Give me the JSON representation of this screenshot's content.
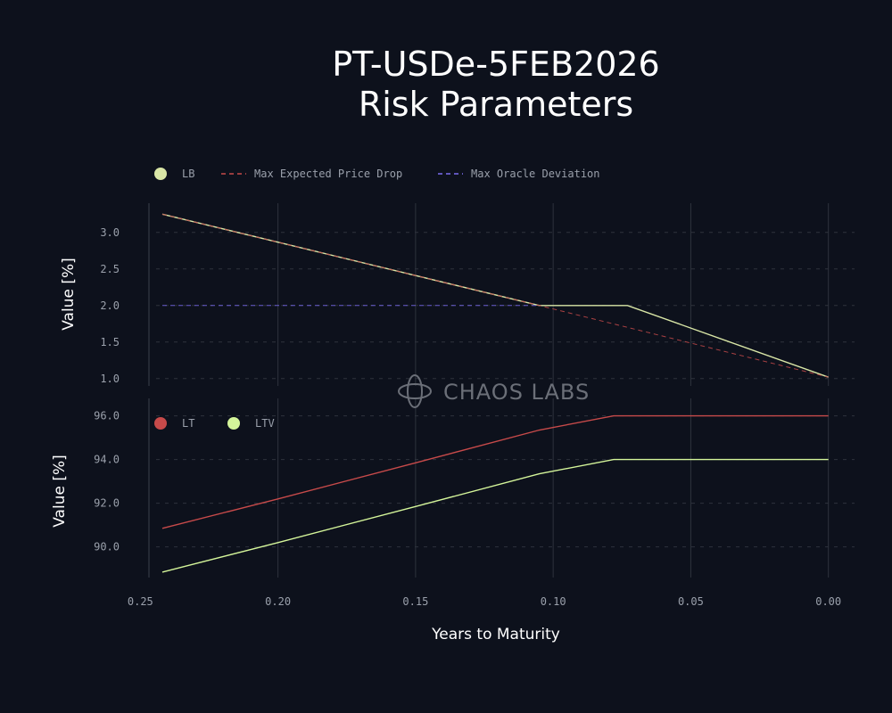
{
  "title_lines": [
    "PT-USDe-5FEB2026",
    "Risk Parameters"
  ],
  "watermark": "CHAOS LABS",
  "chart_data": [
    {
      "type": "line",
      "ylabel": "Value [%]",
      "ylim": [
        0.9,
        3.4
      ],
      "yticks": [
        "1.0",
        "1.5",
        "2.0",
        "2.5",
        "3.0"
      ],
      "grid": true,
      "legend": "top-left",
      "series": [
        {
          "name": "LB",
          "color": "#d9e6a6",
          "style": "solid",
          "marker": "dot",
          "x": [
            0.242,
            0.105,
            0.073,
            0.0
          ],
          "y": [
            3.25,
            2.0,
            2.0,
            1.02
          ]
        },
        {
          "name": "Max Expected Price Drop",
          "color": "#c74a4a",
          "style": "dashed",
          "marker": "dash",
          "x": [
            0.242,
            0.105,
            0.0
          ],
          "y": [
            3.25,
            2.0,
            1.02
          ]
        },
        {
          "name": "Max Oracle Deviation",
          "color": "#7b6cf0",
          "style": "dashed",
          "marker": "dash",
          "x": [
            0.242,
            0.105
          ],
          "y": [
            2.0,
            2.0
          ]
        }
      ]
    },
    {
      "type": "line",
      "ylabel": "Value [%]",
      "ylim": [
        88.6,
        96.8
      ],
      "yticks": [
        "90.0",
        "92.0",
        "94.0",
        "96.0"
      ],
      "grid": true,
      "legend": "top-left",
      "series": [
        {
          "name": "LT",
          "color": "#c74a4a",
          "style": "solid",
          "marker": "dot",
          "x": [
            0.242,
            0.2,
            0.15,
            0.105,
            0.078,
            0.0
          ],
          "y": [
            90.85,
            92.2,
            93.85,
            95.35,
            96.0,
            96.0
          ]
        },
        {
          "name": "LTV",
          "color": "#d4f59a",
          "style": "solid",
          "marker": "dot",
          "x": [
            0.242,
            0.2,
            0.15,
            0.105,
            0.078,
            0.0
          ],
          "y": [
            88.85,
            90.2,
            91.85,
            93.35,
            94.0,
            94.0
          ]
        }
      ]
    }
  ],
  "xaxis": {
    "label": "Years to Maturity",
    "ticks": [
      0.25,
      0.2,
      0.15,
      0.1,
      0.05,
      0.0
    ],
    "tick_labels": [
      "0.25",
      "0.20",
      "0.15",
      "0.10",
      "0.05",
      "0.00"
    ],
    "xlim": [
      0.254,
      -0.0095
    ]
  },
  "colors": {
    "grid": "#2e333d",
    "frame_edge": "#3c414b",
    "watermark": "#6b6f78"
  }
}
